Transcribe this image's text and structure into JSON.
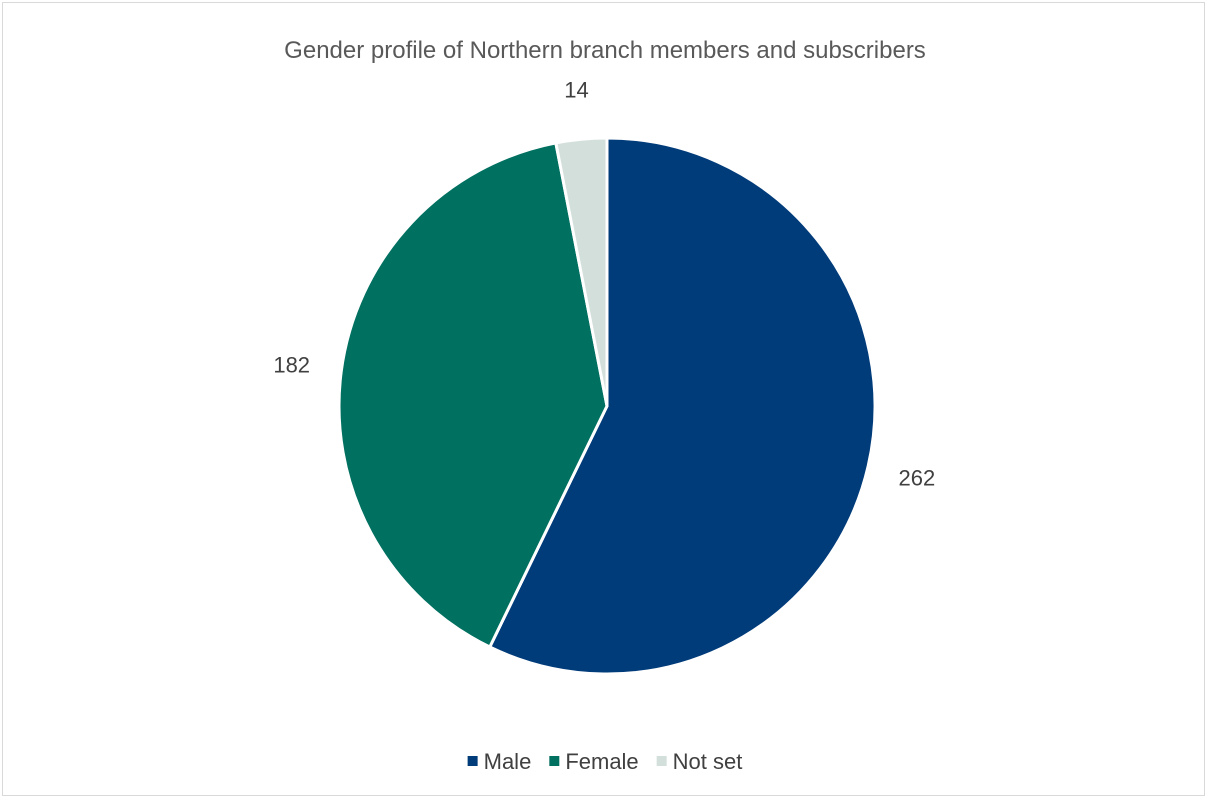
{
  "chart_data": {
    "type": "pie",
    "title": "Gender profile of Northern branch members and subscribers",
    "categories": [
      "Male",
      "Female",
      "Not set"
    ],
    "values": [
      262,
      182,
      14
    ],
    "colors": [
      "#003b7a",
      "#007060",
      "#d3dfda"
    ],
    "show_data_labels": true,
    "legend": {
      "position": "bottom",
      "entries": [
        "Male",
        "Female",
        "Not set"
      ]
    },
    "start_angle": "12-o'clock",
    "direction": "clockwise"
  }
}
